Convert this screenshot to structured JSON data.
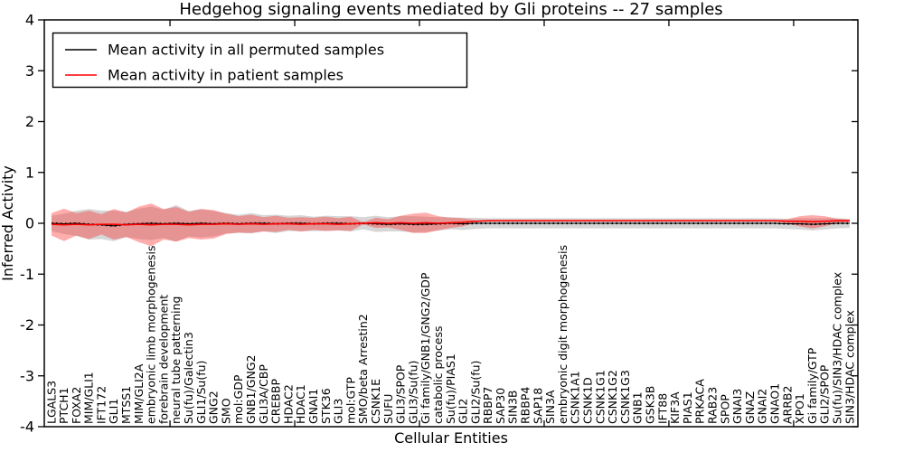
{
  "figure": {
    "title": "Hedgehog signaling events mediated by Gli proteins -- 27 samples",
    "xlabel": "Cellular Entities",
    "ylabel": "Inferred Activity"
  },
  "legend": {
    "items": [
      {
        "label": "Mean activity in all permuted samples",
        "color": "#000000"
      },
      {
        "label": "Mean activity in patient samples",
        "color": "#ff0000"
      }
    ]
  },
  "colors": {
    "permuted_line": "#000000",
    "patient_line": "#ff0000",
    "permuted_band": "rgba(0,0,0,0.16)",
    "patient_band": "rgba(255,40,40,0.38)",
    "axis": "#000000"
  },
  "chart_data": {
    "type": "line",
    "title": "Hedgehog signaling events mediated by Gli proteins -- 27 samples",
    "xlabel": "Cellular Entities",
    "ylabel": "Inferred Activity",
    "ylim": [
      -4,
      4
    ],
    "yticks": [
      -4,
      -3,
      -2,
      -1,
      0,
      1,
      2,
      3,
      4
    ],
    "grid": false,
    "legend_position": "upper left",
    "categories": [
      "LGALS3",
      "PTCH1",
      "FOXA2",
      "MIM/GLI1",
      "IFT172",
      "GLI1",
      "MTSS1",
      "MIM/GLI2A",
      "embryonic limb morphogenesis",
      "forebrain development",
      "neural tube patterning",
      "Su(fu)/Galectin3",
      "GLI1/Su(fu)",
      "GNG2",
      "SMO",
      "mol:GDP",
      "GNB1/GNG2",
      "GLI3A/CBP",
      "CREBBP",
      "HDAC2",
      "HDAC1",
      "GNAI1",
      "STK36",
      "GLI3",
      "mol:GTP",
      "SMO/beta Arrestin2",
      "CSNK1E",
      "SUFU",
      "GLI3/SPOP",
      "GLI3/Su(fu)",
      "Gi family/GNB1/GNG2/GDP",
      "catabolic process",
      "Su(fu)/PIAS1",
      "GLI2",
      "GLI2/Su(fu)",
      "RBBP7",
      "SAP30",
      "SIN3B",
      "RBBP4",
      "SAP18",
      "SIN3A",
      "embryonic digit morphogenesis",
      "CSNK1A1",
      "CSNK1D",
      "CSNK1G1",
      "CSNK1G2",
      "CSNK1G3",
      "GNB1",
      "GSK3B",
      "IFT88",
      "KIF3A",
      "PIAS1",
      "PRKACA",
      "RAB23",
      "SPOP",
      "GNAI3",
      "GNAZ",
      "GNAI2",
      "GNAO1",
      "ARRB2",
      "XPO1",
      "Gi family/GTP",
      "GLI2/SPOP",
      "Su(fu)/SIN3/HDAC complex",
      "SIN3/HDAC complex"
    ],
    "series": [
      {
        "name": "Mean activity in all permuted samples",
        "color": "#000000",
        "values": [
          0,
          -0.01,
          0,
          -0.02,
          -0.03,
          -0.05,
          -0.02,
          -0.01,
          0,
          -0.01,
          0,
          -0.01,
          0,
          -0.01,
          0,
          -0.01,
          0,
          0,
          -0.01,
          0,
          0,
          -0.01,
          0,
          0,
          -0.01,
          0,
          -0.01,
          -0.02,
          -0.01,
          -0.02,
          -0.02,
          -0.01,
          0,
          -0.01,
          0,
          0,
          0,
          0,
          0,
          0,
          0,
          0,
          0,
          0,
          0,
          0,
          0,
          0,
          0,
          0,
          0,
          0,
          0,
          0,
          0,
          0,
          0,
          0,
          0,
          -0.01,
          -0.01,
          -0.02,
          -0.01,
          0,
          0
        ],
        "band_std": [
          0.15,
          0.2,
          0.25,
          0.3,
          0.28,
          0.3,
          0.25,
          0.3,
          0.33,
          0.28,
          0.36,
          0.25,
          0.28,
          0.25,
          0.2,
          0.18,
          0.2,
          0.16,
          0.18,
          0.15,
          0.16,
          0.14,
          0.15,
          0.14,
          0.15,
          0.12,
          0.16,
          0.14,
          0.15,
          0.16,
          0.15,
          0.13,
          0.12,
          0.12,
          0.11,
          0.1,
          0.1,
          0.1,
          0.1,
          0.1,
          0.1,
          0.1,
          0.1,
          0.1,
          0.1,
          0.1,
          0.1,
          0.1,
          0.1,
          0.1,
          0.1,
          0.1,
          0.1,
          0.1,
          0.1,
          0.1,
          0.1,
          0.1,
          0.1,
          0.1,
          0.11,
          0.12,
          0.11,
          0.1,
          0.09
        ]
      },
      {
        "name": "Mean activity in patient samples",
        "color": "#ff0000",
        "values": [
          -0.02,
          -0.03,
          -0.02,
          -0.03,
          -0.02,
          -0.02,
          -0.03,
          -0.02,
          -0.03,
          -0.02,
          -0.02,
          -0.03,
          -0.02,
          -0.02,
          -0.01,
          -0.02,
          -0.01,
          -0.02,
          -0.01,
          -0.01,
          -0.02,
          -0.01,
          -0.01,
          -0.02,
          -0.01,
          0.0,
          0.01,
          0.0,
          0.01,
          0.0,
          0.01,
          0.0,
          0.01,
          0.02,
          0.04,
          0.05,
          0.05,
          0.05,
          0.05,
          0.05,
          0.05,
          0.05,
          0.05,
          0.05,
          0.05,
          0.05,
          0.05,
          0.05,
          0.05,
          0.05,
          0.05,
          0.05,
          0.05,
          0.05,
          0.05,
          0.05,
          0.05,
          0.05,
          0.05,
          0.04,
          0.04,
          0.03,
          0.04,
          0.05,
          0.05
        ],
        "band_std": [
          0.22,
          0.32,
          0.22,
          0.28,
          0.2,
          0.3,
          0.24,
          0.35,
          0.42,
          0.3,
          0.34,
          0.26,
          0.3,
          0.28,
          0.2,
          0.16,
          0.18,
          0.14,
          0.16,
          0.12,
          0.14,
          0.12,
          0.14,
          0.12,
          0.14,
          0.02,
          0.1,
          0.08,
          0.14,
          0.19,
          0.2,
          0.14,
          0.1,
          0.08,
          0.02,
          0.012,
          0.012,
          0.012,
          0.012,
          0.012,
          0.012,
          0.012,
          0.012,
          0.012,
          0.012,
          0.012,
          0.012,
          0.012,
          0.012,
          0.012,
          0.012,
          0.012,
          0.012,
          0.012,
          0.012,
          0.012,
          0.012,
          0.012,
          0.012,
          0.04,
          0.1,
          0.13,
          0.1,
          0.04,
          0.02
        ]
      }
    ]
  }
}
